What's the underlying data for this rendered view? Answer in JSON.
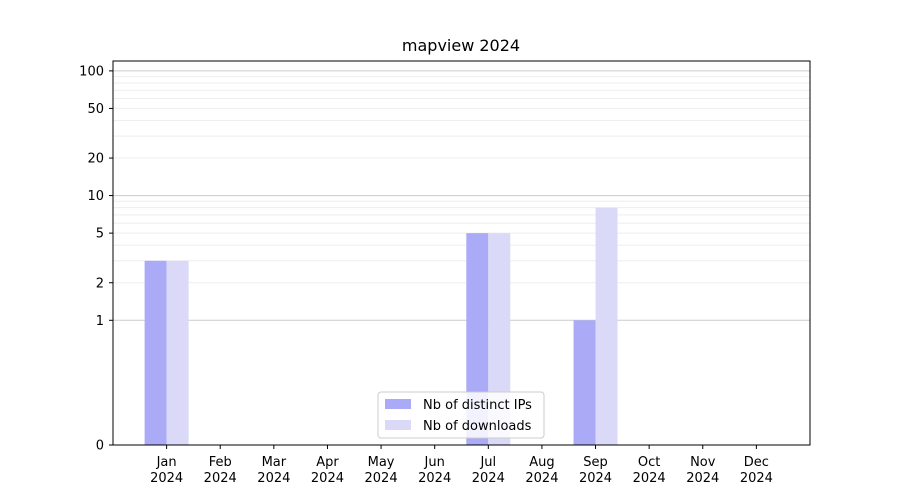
{
  "chart_data": {
    "type": "bar",
    "title": "mapview 2024",
    "xlabel": "",
    "ylabel": "",
    "categories": [
      [
        "Jan",
        "2024"
      ],
      [
        "Feb",
        "2024"
      ],
      [
        "Mar",
        "2024"
      ],
      [
        "Apr",
        "2024"
      ],
      [
        "May",
        "2024"
      ],
      [
        "Jun",
        "2024"
      ],
      [
        "Jul",
        "2024"
      ],
      [
        "Aug",
        "2024"
      ],
      [
        "Sep",
        "2024"
      ],
      [
        "Oct",
        "2024"
      ],
      [
        "Nov",
        "2024"
      ],
      [
        "Dec",
        "2024"
      ]
    ],
    "series": [
      {
        "name": "Nb of distinct IPs",
        "color": "#aaaaf7",
        "values": [
          3,
          0,
          0,
          0,
          0,
          0,
          5,
          0,
          1,
          0,
          0,
          0
        ]
      },
      {
        "name": "Nb of downloads",
        "color": "#dadaf8",
        "values": [
          3,
          0,
          0,
          0,
          0,
          0,
          5,
          0,
          8,
          0,
          0,
          0
        ]
      }
    ],
    "yscale": "symlog",
    "ylim": [
      0,
      120
    ],
    "yticks": [
      0,
      1,
      2,
      5,
      10,
      20,
      50,
      100
    ],
    "grid": true,
    "legend_position": "lower-center"
  }
}
